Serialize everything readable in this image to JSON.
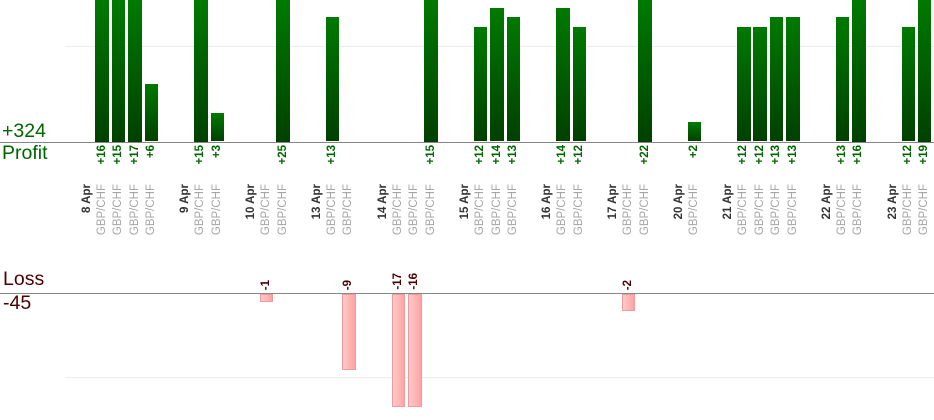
{
  "palette": {
    "profit_text": "#006600",
    "loss_text": "#4c0000",
    "date_text": "#333333",
    "symbol_text": "#a5a5a5",
    "bar_green_light": "#007a00",
    "bar_green_dark": "#004000",
    "bar_pink_light": "#ffcaca",
    "bar_pink_dark": "#ffa3a3",
    "bar_pink_border": "#f09c9c",
    "axis_line": "#878787",
    "gridline": "#ededed"
  },
  "chart_data": {
    "type": "bar",
    "title": "",
    "series_labels": {
      "profit": "Profit",
      "loss": "Loss"
    },
    "totals": {
      "profit": "+324",
      "loss": "-45"
    },
    "grid": true,
    "x_labels_rotated": true,
    "visible_value_range": {
      "profit": [
        0,
        15
      ],
      "loss": [
        -13.5,
        0
      ]
    },
    "note_clipping": "profit bars above +15 clipped at top edge; loss bars beyond -13.5 clipped at plot bottom",
    "groups": [
      {
        "date": "8 Apr",
        "entries": [
          {
            "symbol": "GBP/CHF",
            "value": 16,
            "label": "+16"
          },
          {
            "symbol": "GBP/CHF",
            "value": 15,
            "label": "+15"
          },
          {
            "symbol": "GBP/CHF",
            "value": 17,
            "label": "+17"
          },
          {
            "symbol": "GBP/CHF",
            "value": 6,
            "label": "+6"
          }
        ]
      },
      {
        "date": "9 Apr",
        "entries": [
          {
            "symbol": "GBP/CHF",
            "value": 15,
            "label": "+15"
          },
          {
            "symbol": "GBP/CHF",
            "value": 3,
            "label": "+3"
          }
        ]
      },
      {
        "date": "10 Apr",
        "entries": [
          {
            "symbol": "GBP/CHF",
            "value": -1,
            "label": "-1"
          },
          {
            "symbol": "GBP/CHF",
            "value": 25,
            "label": "+25"
          }
        ]
      },
      {
        "date": "13 Apr",
        "entries": [
          {
            "symbol": "GBP/CHF",
            "value": 13,
            "label": "+13"
          },
          {
            "symbol": "GBP/CHF",
            "value": -9,
            "label": "-9"
          }
        ]
      },
      {
        "date": "14 Apr",
        "entries": [
          {
            "symbol": "GBP/CHF",
            "value": -17,
            "label": "-17"
          },
          {
            "symbol": "GBP/CHF",
            "value": -16,
            "label": "-16"
          },
          {
            "symbol": "GBP/CHF",
            "value": 15,
            "label": "+15"
          }
        ]
      },
      {
        "date": "15 Apr",
        "entries": [
          {
            "symbol": "GBP/CHF",
            "value": 12,
            "label": "+12"
          },
          {
            "symbol": "GBP/CHF",
            "value": 14,
            "label": "+14"
          },
          {
            "symbol": "GBP/CHF",
            "value": 13,
            "label": "+13"
          }
        ]
      },
      {
        "date": "16 Apr",
        "entries": [
          {
            "symbol": "GBP/CHF",
            "value": 14,
            "label": "+14"
          },
          {
            "symbol": "GBP/CHF",
            "value": 12,
            "label": "+12"
          }
        ]
      },
      {
        "date": "17 Apr",
        "entries": [
          {
            "symbol": "GBP/CHF",
            "value": -2,
            "label": "-2"
          },
          {
            "symbol": "GBP/CHF",
            "value": 22,
            "label": "+22"
          }
        ]
      },
      {
        "date": "20 Apr",
        "entries": [
          {
            "symbol": "GBP/CHF",
            "value": 2,
            "label": "+2"
          }
        ]
      },
      {
        "date": "21 Apr",
        "entries": [
          {
            "symbol": "GBP/CHF",
            "value": 12,
            "label": "+12"
          },
          {
            "symbol": "GBP/CHF",
            "value": 12,
            "label": "+12"
          },
          {
            "symbol": "GBP/CHF",
            "value": 13,
            "label": "+13"
          },
          {
            "symbol": "GBP/CHF",
            "value": 13,
            "label": "+13"
          }
        ]
      },
      {
        "date": "22 Apr",
        "entries": [
          {
            "symbol": "GBP/CHF",
            "value": 13,
            "label": "+13"
          },
          {
            "symbol": "GBP/CHF",
            "value": 16,
            "label": "+16"
          }
        ]
      },
      {
        "date": "23 Apr",
        "entries": [
          {
            "symbol": "GBP/CHF",
            "value": 12,
            "label": "+12"
          },
          {
            "symbol": "GBP/CHF",
            "value": 19,
            "label": "+19"
          }
        ]
      }
    ]
  }
}
